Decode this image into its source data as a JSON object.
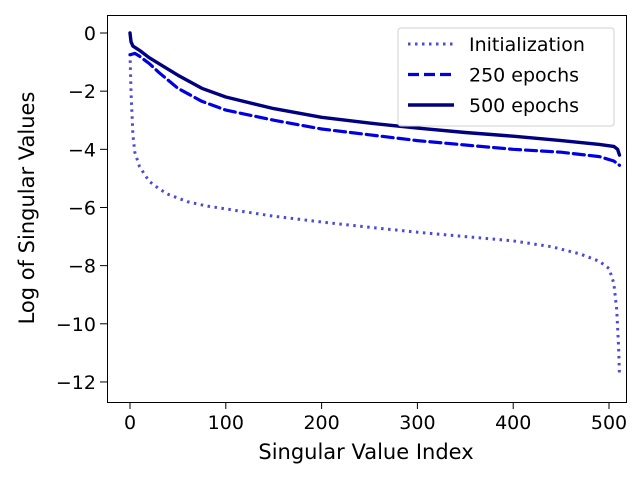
{
  "chart_data": {
    "type": "line",
    "title": "",
    "xlabel": "Singular Value Index",
    "ylabel": "Log of Singular Values",
    "xlim": [
      -25,
      515
    ],
    "ylim": [
      -12.6,
      0.6
    ],
    "xticks": [
      0,
      100,
      200,
      300,
      400,
      500
    ],
    "yticks": [
      0,
      -2,
      -4,
      -6,
      -8,
      -10,
      -12
    ],
    "grid": false,
    "legend_position": "top-right",
    "series": [
      {
        "name": "Initialization",
        "style": "dotted",
        "color": "#4b4bd6",
        "x": [
          0,
          1,
          3,
          5,
          10,
          20,
          30,
          40,
          60,
          80,
          100,
          150,
          200,
          250,
          300,
          350,
          400,
          440,
          470,
          490,
          500,
          505,
          508,
          510,
          511
        ],
        "y": [
          -0.7,
          -2.0,
          -3.5,
          -4.1,
          -4.6,
          -5.1,
          -5.35,
          -5.55,
          -5.8,
          -5.95,
          -6.05,
          -6.3,
          -6.5,
          -6.68,
          -6.85,
          -7.0,
          -7.15,
          -7.35,
          -7.6,
          -7.85,
          -8.1,
          -8.6,
          -9.5,
          -10.8,
          -11.8
        ]
      },
      {
        "name": "250 epochs",
        "style": "dashed",
        "color": "#0000e6",
        "x": [
          0,
          5,
          10,
          20,
          30,
          50,
          75,
          100,
          150,
          200,
          250,
          300,
          350,
          400,
          450,
          490,
          505,
          511
        ],
        "y": [
          -0.75,
          -0.7,
          -0.8,
          -1.05,
          -1.35,
          -1.9,
          -2.35,
          -2.65,
          -3.0,
          -3.3,
          -3.5,
          -3.7,
          -3.85,
          -4.0,
          -4.1,
          -4.25,
          -4.4,
          -4.55
        ]
      },
      {
        "name": "500 epochs",
        "style": "solid",
        "color": "#000080",
        "x": [
          0,
          1,
          3,
          10,
          20,
          35,
          50,
          75,
          100,
          150,
          200,
          250,
          300,
          350,
          400,
          450,
          490,
          505,
          509,
          511
        ],
        "y": [
          0.0,
          -0.3,
          -0.45,
          -0.6,
          -0.85,
          -1.15,
          -1.45,
          -1.9,
          -2.2,
          -2.6,
          -2.9,
          -3.1,
          -3.27,
          -3.42,
          -3.55,
          -3.7,
          -3.83,
          -3.9,
          -4.0,
          -4.2
        ]
      }
    ]
  }
}
